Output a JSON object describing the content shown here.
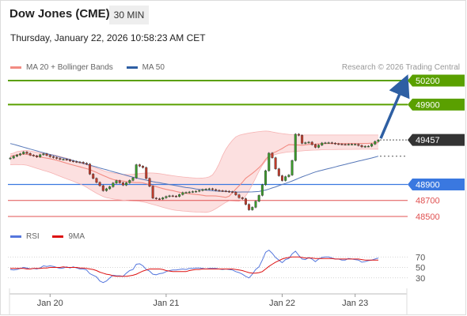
{
  "header": {
    "title": "Dow Jones (CME)",
    "timeframe": "30 MIN"
  },
  "datetime": "Thursday, January 22, 2026 10:58:23 AM CET",
  "main_legend": [
    {
      "label": "MA 20 + Bollinger Bands",
      "color": "#f28b82"
    },
    {
      "label": "MA 50",
      "color": "#2e5fa3"
    }
  ],
  "credit": "Research © 2026 Trading Central",
  "rsi_legend": [
    {
      "label": "RSI",
      "color": "#5577dd"
    },
    {
      "label": "9MA",
      "color": "#dd1111"
    }
  ],
  "chart_data": {
    "type": "candlestick",
    "x_ticks": [
      "Jan 20",
      "Jan 21",
      "Jan 22",
      "Jan 23"
    ],
    "y_range": [
      48450,
      50230
    ],
    "levels": [
      {
        "label": "50200",
        "value": 50200,
        "kind": "target",
        "color": "#5aa000"
      },
      {
        "label": "49900",
        "value": 49900,
        "kind": "target",
        "color": "#5aa000"
      },
      {
        "label": "49457",
        "value": 49457,
        "kind": "last",
        "color": "#333333"
      },
      {
        "label": "48900",
        "value": 48900,
        "kind": "pivot",
        "color": "#3a78e0"
      },
      {
        "label": "48700",
        "value": 48700,
        "kind": "support",
        "color": "#e05050"
      },
      {
        "label": "48500",
        "value": 48500,
        "kind": "support",
        "color": "#e05050"
      }
    ],
    "closes": [
      49231,
      49253,
      49269,
      49284,
      49306,
      49289,
      49267,
      49259,
      49245,
      49272,
      49283,
      49265,
      49248,
      49237,
      49226,
      49214,
      49214,
      49209,
      49194,
      49187,
      49181,
      49178,
      49166,
      49155,
      49030,
      48976,
      48926,
      48885,
      48822,
      48846,
      48872,
      48918,
      48947,
      48921,
      48892,
      48921,
      48951,
      48983,
      49147,
      49129,
      49112,
      48976,
      48877,
      48729,
      48721,
      48717,
      48733,
      48749,
      48758,
      48754,
      48750,
      48773,
      48798,
      48800,
      48806,
      48811,
      48815,
      48825,
      48836,
      48841,
      48846,
      48836,
      48826,
      48822,
      48818,
      48815,
      48808,
      48803,
      48770,
      48734,
      48722,
      48651,
      48583,
      48614,
      48689,
      48763,
      48896,
      49072,
      49292,
      49234,
      49096,
      49009,
      48949,
      48998,
      49018,
      49200,
      49529,
      49515,
      49415,
      49423,
      49430,
      49399,
      49365,
      49392,
      49419,
      49421,
      49423,
      49417,
      49409,
      49405,
      49401,
      49400,
      49403,
      49403,
      49403,
      49388,
      49371,
      49378,
      49379,
      49405,
      49438,
      49457
    ],
    "ma20": [
      49251,
      49262,
      49272,
      49277,
      49280,
      49276,
      49270,
      49262,
      49253,
      49244,
      49236,
      49229,
      49222,
      49213,
      49203,
      49191,
      49179,
      49166,
      49153,
      49142,
      49131,
      49120,
      49109,
      49098,
      49086,
      49068,
      49050,
      49031,
      49013,
      48995,
      48977,
      48963,
      48953,
      48947,
      48942,
      48937,
      48933,
      48927,
      48924,
      48924,
      48920,
      48909,
      48897,
      48885,
      48873,
      48860,
      48849,
      48839,
      48830,
      48823,
      48812,
      48803,
      48791,
      48788,
      48783,
      48779,
      48774,
      48770,
      48764,
      48758,
      48758,
      48758,
      48756,
      48752,
      48745,
      48739,
      48753,
      48797,
      48842,
      48884,
      48927,
      48977,
      49008,
      49039,
      49073,
      49111,
      49155,
      49214,
      49257,
      49292,
      49306,
      49328,
      49350,
      49377,
      49398,
      49397,
      49395,
      49393,
      49391,
      49396,
      49401,
      49404,
      49405,
      49408,
      49410,
      49412,
      49413,
      49412,
      49412,
      49412,
      49412,
      49412,
      49412,
      49413,
      49412,
      49412,
      49413,
      49414,
      49415,
      49417,
      49419,
      49423
    ],
    "bb_upper": [
      49282,
      49294,
      49311,
      49317,
      49323,
      49326,
      49318,
      49311,
      49302,
      49296,
      49289,
      49282,
      49278,
      49271,
      49262,
      49251,
      49239,
      49228,
      49215,
      49201,
      49187,
      49174,
      49159,
      49147,
      49133,
      49119,
      49104,
      49089,
      49074,
      49060,
      49050,
      49043,
      49037,
      49033,
      49028,
      49026,
      49025,
      49027,
      49031,
      49036,
      49040,
      49043,
      49044,
      49043,
      49040,
      49035,
      49029,
      49022,
      49016,
      49010,
      49004,
      48999,
      48994,
      48990,
      48986,
      48983,
      48980,
      48979,
      48980,
      48985,
      48995,
      49020,
      49080,
      49160,
      49260,
      49340,
      49402,
      49454,
      49495,
      49516,
      49527,
      49535,
      49544,
      49550,
      49557,
      49562,
      49566,
      49568,
      49565,
      49558,
      49550,
      49543,
      49537,
      49531,
      49527,
      49523,
      49521,
      49520,
      49519,
      49519,
      49519,
      49519,
      49519,
      49519,
      49519,
      49519,
      49519,
      49519,
      49519,
      49519,
      49519,
      49519,
      49519,
      49519,
      49519,
      49519,
      49519,
      49519,
      49519,
      49519,
      49519,
      49519
    ],
    "bb_lower": [
      49146,
      49149,
      49149,
      49147,
      49146,
      49141,
      49128,
      49115,
      49102,
      49089,
      49076,
      49064,
      49050,
      49035,
      49019,
      49003,
      48986,
      48970,
      48955,
      48940,
      48923,
      48907,
      48887,
      48865,
      48839,
      48815,
      48790,
      48768,
      48750,
      48735,
      48727,
      48719,
      48712,
      48707,
      48702,
      48697,
      48694,
      48692,
      48691,
      48689,
      48681,
      48673,
      48662,
      48650,
      48639,
      48627,
      48614,
      48603,
      48592,
      48583,
      48577,
      48573,
      48568,
      48565,
      48561,
      48558,
      48556,
      48555,
      48552,
      48551,
      48558,
      48574,
      48597,
      48623,
      48650,
      48676,
      48694,
      48692,
      48690,
      48688,
      48705,
      48757,
      48823,
      48899,
      48981,
      49066,
      49140,
      49194,
      49236,
      49260,
      49276,
      49287,
      49295,
      49301,
      49306,
      49309,
      49313,
      49317,
      49320,
      49324,
      49327,
      49329,
      49330,
      49332,
      49334,
      49335,
      49336,
      49336,
      49337,
      49338,
      49338,
      49339,
      49339,
      49339,
      49340,
      49340,
      49341,
      49341,
      49341,
      49342,
      49342,
      49342
    ],
    "ma50": [
      49412,
      49402,
      49390,
      49379,
      49367,
      49355,
      49343,
      49332,
      49320,
      49308,
      49297,
      49286,
      49275,
      49265,
      49254,
      49243,
      49232,
      49221,
      49210,
      49199,
      49189,
      49177,
      49165,
      49153,
      49141,
      49130,
      49118,
      49106,
      49095,
      49084,
      49071,
      49059,
      49048,
      49037,
      49026,
      49014,
      49003,
      48991,
      48981,
      48972,
      48963,
      48954,
      48945,
      48935,
      48928,
      48922,
      48914,
      48907,
      48899,
      48892,
      48885,
      48877,
      48869,
      48861,
      48857,
      48851,
      48844,
      48839,
      48835,
      48828,
      48826,
      48822,
      48818,
      48816,
      48815,
      48813,
      48810,
      48808,
      48806,
      48805,
      48806,
      48806,
      48806,
      48807,
      48810,
      48812,
      48822,
      48830,
      48843,
      48856,
      48869,
      48885,
      48900,
      48913,
      48928,
      48943,
      48960,
      48978,
      48995,
      49011,
      49026,
      49041,
      49056,
      49068,
      49078,
      49089,
      49099,
      49109,
      49119,
      49131,
      49141,
      49151,
      49162,
      49172,
      49182,
      49193,
      49202,
      49211,
      49221,
      49231,
      49242,
      49254
    ],
    "rsi": [
      46,
      45,
      46,
      48,
      50,
      49,
      47,
      48,
      47,
      49,
      53,
      52,
      53,
      52,
      50,
      48,
      49,
      51,
      49,
      51,
      49,
      47,
      47,
      45,
      38,
      35,
      32,
      24,
      21,
      24,
      30,
      35,
      34,
      34,
      33,
      39,
      44,
      46,
      56,
      57,
      53,
      46,
      43,
      37,
      36,
      38,
      39,
      42,
      44,
      45,
      45,
      46,
      47,
      46,
      48,
      48,
      49,
      49,
      48,
      47,
      48,
      48,
      48,
      47,
      46,
      47,
      46,
      45,
      42,
      40,
      37,
      33,
      30,
      37,
      46,
      51,
      64,
      79,
      83,
      77,
      69,
      64,
      59,
      65,
      67,
      76,
      81,
      73,
      66,
      65,
      69,
      66,
      61,
      66,
      69,
      70,
      70,
      68,
      66,
      66,
      64,
      64,
      67,
      66,
      65,
      64,
      60,
      61,
      63,
      64,
      66,
      68
    ],
    "rsi_ma9": [
      48,
      48,
      48,
      48,
      48,
      47,
      47,
      48,
      48,
      48,
      49,
      49,
      50,
      50,
      50,
      50,
      51,
      50,
      50,
      50,
      50,
      49,
      49,
      48,
      47,
      46,
      44,
      41,
      39,
      37,
      36,
      34,
      33,
      33,
      33,
      33,
      34,
      35,
      37,
      40,
      43,
      45,
      47,
      47,
      47,
      47,
      46,
      44,
      43,
      42,
      42,
      42,
      42,
      42,
      44,
      45,
      46,
      46,
      47,
      47,
      47,
      47,
      47,
      47,
      47,
      47,
      47,
      47,
      46,
      45,
      44,
      42,
      40,
      39,
      39,
      40,
      42,
      47,
      52,
      56,
      60,
      63,
      66,
      68,
      69,
      70,
      70,
      70,
      69,
      68,
      68,
      68,
      67,
      67,
      67,
      67,
      67,
      67,
      66,
      66,
      66,
      66,
      66,
      66,
      66,
      66,
      65,
      64,
      64,
      64,
      64,
      64
    ],
    "rsi_ticks": [
      70,
      50,
      30
    ],
    "rsi_range": [
      10,
      90
    ],
    "forecast_arrow": {
      "from": 49457,
      "to": 50200
    }
  }
}
